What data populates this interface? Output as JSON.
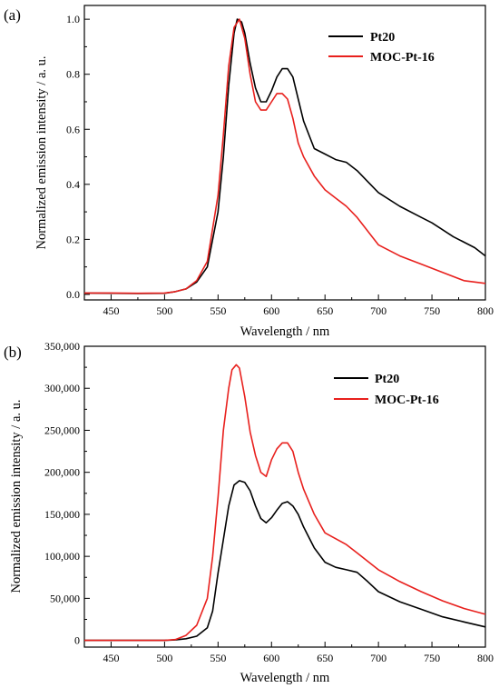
{
  "chart_data": [
    {
      "panel": "(a)",
      "type": "line",
      "xlabel": "Wavelength / nm",
      "ylabel": "Normalized emission intensity / a. u.",
      "xlim": [
        425,
        800
      ],
      "ylim": [
        -0.02,
        1.05
      ],
      "xticks": [
        450,
        500,
        550,
        600,
        650,
        700,
        750,
        800
      ],
      "yticks": [
        0.0,
        0.2,
        0.4,
        0.6,
        0.8,
        1.0
      ],
      "ytick_labels": [
        "0.0",
        "0.2",
        "0.4",
        "0.6",
        "0.8",
        "1.0"
      ],
      "legend_position": "top-right",
      "series": [
        {
          "name": "Pt20",
          "color": "#000000",
          "x": [
            425,
            450,
            475,
            500,
            510,
            520,
            530,
            540,
            550,
            555,
            560,
            565,
            568,
            572,
            575,
            580,
            585,
            590,
            595,
            600,
            605,
            610,
            615,
            620,
            625,
            630,
            640,
            650,
            660,
            670,
            680,
            690,
            700,
            720,
            740,
            750,
            770,
            790,
            800
          ],
          "y": [
            0.005,
            0.004,
            0.003,
            0.004,
            0.01,
            0.02,
            0.045,
            0.1,
            0.3,
            0.5,
            0.76,
            0.95,
            1.0,
            0.99,
            0.95,
            0.84,
            0.75,
            0.7,
            0.7,
            0.74,
            0.79,
            0.82,
            0.82,
            0.79,
            0.71,
            0.63,
            0.53,
            0.51,
            0.49,
            0.48,
            0.45,
            0.41,
            0.37,
            0.32,
            0.28,
            0.26,
            0.21,
            0.17,
            0.14
          ]
        },
        {
          "name": "MOC-Pt-16",
          "color": "#e8201d",
          "x": [
            425,
            450,
            475,
            500,
            510,
            520,
            530,
            540,
            550,
            555,
            560,
            565,
            570,
            575,
            580,
            585,
            590,
            595,
            600,
            605,
            610,
            615,
            620,
            625,
            630,
            640,
            650,
            660,
            670,
            680,
            690,
            700,
            720,
            740,
            760,
            780,
            800
          ],
          "y": [
            0.005,
            0.005,
            0.004,
            0.005,
            0.01,
            0.02,
            0.05,
            0.12,
            0.36,
            0.58,
            0.83,
            0.97,
            1.0,
            0.93,
            0.8,
            0.7,
            0.67,
            0.67,
            0.7,
            0.73,
            0.73,
            0.71,
            0.64,
            0.55,
            0.5,
            0.43,
            0.38,
            0.35,
            0.32,
            0.28,
            0.23,
            0.18,
            0.14,
            0.11,
            0.08,
            0.05,
            0.04
          ]
        }
      ]
    },
    {
      "panel": "(b)",
      "type": "line",
      "xlabel": "Wavelength / nm",
      "ylabel": "Normalized emission intensity / a. u.",
      "xlim": [
        425,
        800
      ],
      "ylim": [
        -8000,
        350000
      ],
      "xticks": [
        450,
        500,
        550,
        600,
        650,
        700,
        750,
        800
      ],
      "yticks": [
        0,
        50000,
        100000,
        150000,
        200000,
        250000,
        300000,
        350000
      ],
      "ytick_labels": [
        "0",
        "50,000",
        "100,000",
        "150,000",
        "200,000",
        "250,000",
        "300,000",
        "350,000"
      ],
      "legend_position": "top-right",
      "series": [
        {
          "name": "Pt20",
          "color": "#000000",
          "x": [
            425,
            450,
            475,
            500,
            510,
            520,
            530,
            540,
            545,
            550,
            555,
            560,
            565,
            570,
            575,
            580,
            585,
            590,
            595,
            600,
            605,
            610,
            615,
            620,
            625,
            630,
            640,
            650,
            660,
            670,
            680,
            690,
            700,
            720,
            740,
            760,
            780,
            800
          ],
          "y": [
            0,
            0,
            0,
            0,
            500,
            2000,
            5000,
            15000,
            35000,
            80000,
            120000,
            160000,
            185000,
            190000,
            188000,
            178000,
            160000,
            145000,
            140000,
            146000,
            155000,
            163000,
            165000,
            160000,
            150000,
            135000,
            110000,
            93000,
            87000,
            84000,
            81000,
            70000,
            58000,
            46000,
            37000,
            28000,
            22000,
            16000
          ]
        },
        {
          "name": "MOC-Pt-16",
          "color": "#e8201d",
          "x": [
            425,
            450,
            475,
            500,
            510,
            520,
            530,
            540,
            545,
            550,
            555,
            560,
            563,
            567,
            570,
            575,
            580,
            585,
            590,
            595,
            600,
            605,
            610,
            615,
            620,
            625,
            630,
            640,
            650,
            670,
            680,
            700,
            720,
            740,
            760,
            780,
            800
          ],
          "y": [
            0,
            0,
            0,
            0,
            1000,
            6000,
            18000,
            50000,
            100000,
            170000,
            250000,
            300000,
            322000,
            328000,
            324000,
            290000,
            248000,
            220000,
            200000,
            195000,
            215000,
            228000,
            235000,
            235000,
            225000,
            200000,
            180000,
            150000,
            128000,
            114000,
            104000,
            84000,
            70000,
            58000,
            47000,
            38000,
            31000
          ]
        }
      ]
    }
  ]
}
